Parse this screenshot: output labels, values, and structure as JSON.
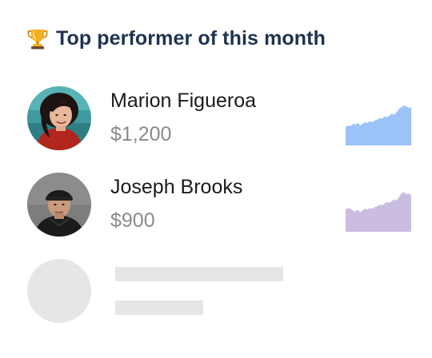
{
  "header": {
    "icon": "trophy-icon",
    "title": "Top performer of this month"
  },
  "performers": [
    {
      "name": "Marion Figueroa",
      "amount": "$1,200",
      "sparkline_color": "#9cc3f7",
      "sparkline": [
        22,
        24,
        23,
        26,
        25,
        27,
        24,
        26,
        28,
        27,
        29,
        28,
        30,
        31,
        33,
        32,
        35,
        34,
        36,
        38,
        37,
        40,
        44,
        46,
        48,
        47,
        45,
        46
      ]
    },
    {
      "name": "Joseph Brooks",
      "amount": "$900",
      "sparkline_color": "#cbbde0",
      "sparkline": [
        26,
        28,
        27,
        25,
        24,
        26,
        23,
        25,
        27,
        26,
        28,
        27,
        29,
        30,
        32,
        31,
        33,
        35,
        34,
        36,
        38,
        37,
        41,
        45,
        47,
        44,
        45,
        43
      ]
    }
  ],
  "placeholder": {
    "type": "loading-skeleton"
  }
}
